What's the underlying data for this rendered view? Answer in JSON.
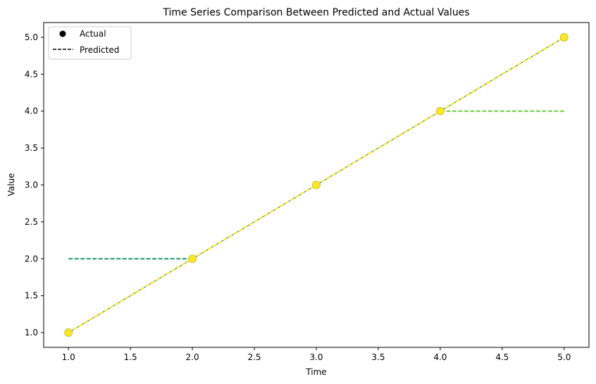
{
  "chart_data": {
    "type": "line",
    "title": "Time Series Comparison Between Predicted and Actual Values",
    "xlabel": "Time",
    "ylabel": "Value",
    "xlim": [
      0.8,
      5.2
    ],
    "ylim": [
      0.8,
      5.2
    ],
    "x_ticks": [
      "1.0",
      "1.5",
      "2.0",
      "2.5",
      "3.0",
      "3.5",
      "4.0",
      "4.5",
      "5.0"
    ],
    "y_ticks": [
      "1.0",
      "1.5",
      "2.0",
      "2.5",
      "3.0",
      "3.5",
      "4.0",
      "4.5",
      "5.0"
    ],
    "legend": {
      "placement": "top-left",
      "entries": [
        {
          "label": "Actual",
          "marker": "dot",
          "color": "#000000"
        },
        {
          "label": "Predicted",
          "marker": "dashed-line",
          "color": "#000000"
        }
      ]
    },
    "actual": {
      "x": [
        1,
        2,
        3,
        4,
        5
      ],
      "y": [
        1,
        2,
        3,
        4,
        5
      ],
      "color": "#fde725",
      "edge_color": "#bcbd22"
    },
    "predicted_segments": [
      {
        "x": [
          1,
          2
        ],
        "y": [
          2,
          2
        ],
        "color": "#35a07c"
      },
      {
        "x": [
          1,
          2
        ],
        "y": [
          1,
          2
        ],
        "color": "#fde725"
      },
      {
        "x": [
          2,
          3
        ],
        "y": [
          2,
          3
        ],
        "color": "#fde725"
      },
      {
        "x": [
          3,
          4
        ],
        "y": [
          3,
          4
        ],
        "color": "#fde725"
      },
      {
        "x": [
          4,
          5
        ],
        "y": [
          4,
          5
        ],
        "color": "#fde725"
      },
      {
        "x": [
          4,
          5
        ],
        "y": [
          4,
          4
        ],
        "color": "#7ad151"
      }
    ],
    "connector_line_color": "#1f77b4",
    "grid": false
  }
}
